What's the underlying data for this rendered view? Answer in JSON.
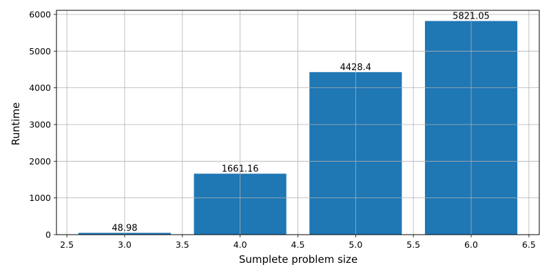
{
  "chart_data": {
    "type": "bar",
    "x": [
      3,
      4,
      5,
      6
    ],
    "values": [
      48.98,
      1661.16,
      4428.4,
      5821.05
    ],
    "data_labels": [
      "48.98",
      "1661.16",
      "4428.4",
      "5821.05"
    ],
    "bar_width": 0.8,
    "xlabel": "Sumplete problem size",
    "ylabel": "Runtime",
    "xlim": [
      2.41,
      6.59
    ],
    "ylim": [
      0,
      6112
    ],
    "xticks": [
      2.5,
      3.0,
      3.5,
      4.0,
      4.5,
      5.0,
      5.5,
      6.0,
      6.5
    ],
    "xtick_labels": [
      "2.5",
      "3.0",
      "3.5",
      "4.0",
      "4.5",
      "5.0",
      "5.5",
      "6.0",
      "6.5"
    ],
    "yticks": [
      0,
      1000,
      2000,
      3000,
      4000,
      5000,
      6000
    ],
    "ytick_labels": [
      "0",
      "1000",
      "2000",
      "3000",
      "4000",
      "5000",
      "6000"
    ],
    "grid": true,
    "colors": {
      "bar": "#1f77b4",
      "grid": "#b0b0b0",
      "axis": "#000000"
    }
  }
}
